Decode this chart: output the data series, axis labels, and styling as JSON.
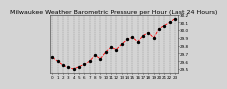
{
  "title": "Milwaukee Weather Barometric Pressure per Hour (Last 24 Hours)",
  "background_color": "#d4d4d4",
  "plot_bg_color": "#d4d4d4",
  "line_color": "#ff0000",
  "marker_color": "#000000",
  "grid_color": "#888888",
  "hours": [
    0,
    1,
    2,
    3,
    4,
    5,
    6,
    7,
    8,
    9,
    10,
    11,
    12,
    13,
    14,
    15,
    16,
    17,
    18,
    19,
    20,
    21,
    22,
    23
  ],
  "pressure": [
    29.65,
    29.6,
    29.55,
    29.52,
    29.5,
    29.53,
    29.56,
    29.6,
    29.68,
    29.63,
    29.72,
    29.78,
    29.75,
    29.82,
    29.88,
    29.91,
    29.85,
    29.93,
    29.97,
    29.9,
    30.02,
    30.06,
    30.1,
    30.15
  ],
  "ylim_min": 29.45,
  "ylim_max": 30.2,
  "ytick_values": [
    29.5,
    29.6,
    29.7,
    29.8,
    29.9,
    30.0,
    30.1,
    30.2
  ],
  "title_fontsize": 4.5,
  "tick_fontsize": 3.0,
  "marker_size": 2.0,
  "line_width": 0.6
}
